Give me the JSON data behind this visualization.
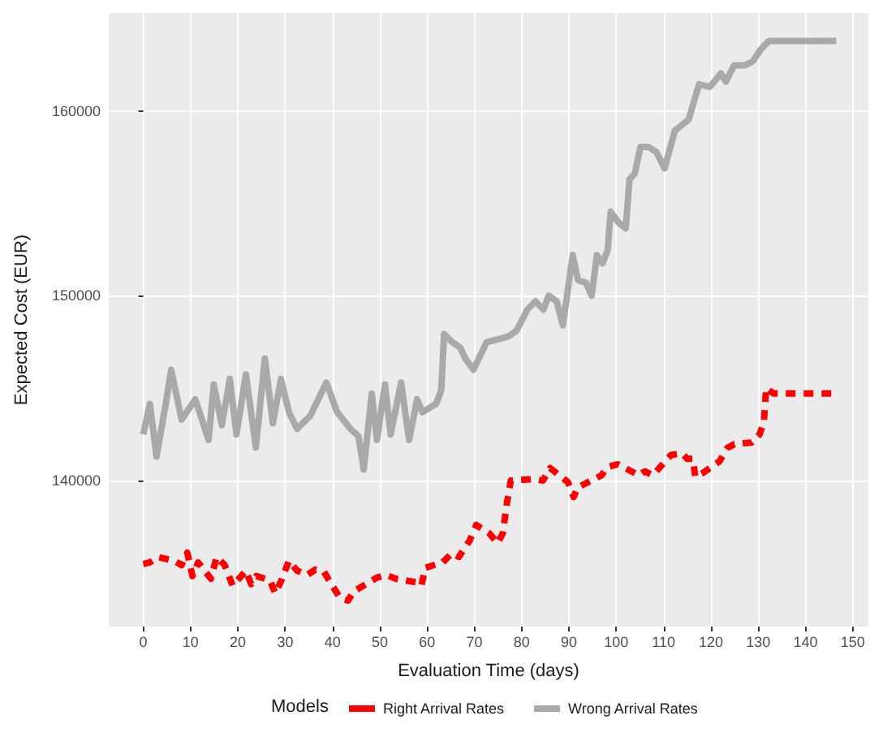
{
  "chart_data": {
    "type": "line",
    "xlabel": "Evaluation Time (days)",
    "ylabel": "Expected Cost (EUR)",
    "legend_title": "Models",
    "legend": "bottom",
    "grid": true,
    "xlim": [
      -7.3,
      153.3
    ],
    "xticks": [
      0,
      10,
      20,
      30,
      40,
      50,
      60,
      70,
      80,
      90,
      100,
      110,
      120,
      130,
      140,
      150
    ],
    "ylim": [
      132100,
      165300
    ],
    "yticks": [
      140000,
      150000,
      160000
    ],
    "series": [
      {
        "name": "Right Arrival Rates",
        "color": "#ff0000",
        "line_style": "dashed",
        "x": [
          0,
          1.4,
          3.1,
          6.5,
          8.1,
          9.3,
          10.4,
          11.6,
          14.3,
          15.5,
          17.2,
          18.9,
          21.7,
          22.8,
          23.9,
          26.8,
          27.9,
          29.1,
          30.8,
          32.5,
          34.7,
          36.4,
          38.2,
          39.3,
          41.6,
          43.3,
          44.5,
          49.4,
          51.3,
          53.4,
          57.9,
          58.8,
          59.6,
          63.3,
          65.3,
          66.7,
          69.0,
          70.4,
          71.4,
          73.2,
          74.9,
          76.0,
          76.9,
          77.7,
          82.8,
          84.5,
          86.0,
          89.8,
          91.0,
          91.8,
          96.9,
          98.1,
          100.3,
          104.8,
          106.0,
          107.7,
          111.6,
          113.9,
          115.0,
          116.2,
          116.7,
          118.1,
          121.8,
          123.5,
          125.0,
          128.6,
          130.3,
          131.2,
          131.7,
          133.2,
          134.9,
          146.2
        ],
        "values": [
          135490,
          135575,
          135870,
          135660,
          135430,
          136100,
          134840,
          135575,
          134690,
          135870,
          135430,
          134310,
          135130,
          134400,
          134840,
          134600,
          133900,
          134540,
          135660,
          135130,
          134900,
          135190,
          135070,
          134600,
          133650,
          133510,
          134010,
          134750,
          134900,
          134690,
          134490,
          134310,
          135280,
          135575,
          136080,
          135870,
          136750,
          137600,
          137430,
          137140,
          136610,
          137140,
          138820,
          140000,
          140090,
          140000,
          140680,
          139910,
          139115,
          139620,
          140290,
          140735,
          140885,
          140290,
          140500,
          140290,
          141390,
          141480,
          141180,
          141180,
          140200,
          140380,
          141035,
          141770,
          141975,
          142060,
          142500,
          143160,
          145020,
          144720,
          144720,
          144720
        ]
      },
      {
        "name": "Wrong Arrival Rates",
        "color": "#a9a9a9",
        "line_style": "solid",
        "x": [
          0,
          1.4,
          2.8,
          4.75,
          5.9,
          8.1,
          11.0,
          13.8,
          14.9,
          16.6,
          18.3,
          19.7,
          21.7,
          23.8,
          25.7,
          27.4,
          29.1,
          30.8,
          32.5,
          35.3,
          38.7,
          41.0,
          43.8,
          45.5,
          46.6,
          48.3,
          49.4,
          51.1,
          52.3,
          54.5,
          56.2,
          57.9,
          59.0,
          61.9,
          63.0,
          63.6,
          65.3,
          67.0,
          68.1,
          69.8,
          72.6,
          74.9,
          77.2,
          78.9,
          81.2,
          82.9,
          84.6,
          85.7,
          87.4,
          88.7,
          90.8,
          91.9,
          93.6,
          94.8,
          95.9,
          97.1,
          98.2,
          98.8,
          100.5,
          102.0,
          102.8,
          103.9,
          105.1,
          106.8,
          108.5,
          110.2,
          112.4,
          115.3,
          117.5,
          119.8,
          122.1,
          123.2,
          124.9,
          127.2,
          128.9,
          130.6,
          132.3,
          146.5
        ],
        "values": [
          142500,
          144150,
          141300,
          144150,
          146000,
          143300,
          144400,
          142200,
          145200,
          143000,
          145500,
          142500,
          145750,
          141800,
          146600,
          143100,
          145500,
          143700,
          142800,
          143500,
          145300,
          143700,
          142800,
          142400,
          140600,
          144700,
          142200,
          145200,
          142500,
          145300,
          142200,
          144400,
          143700,
          144150,
          144900,
          147930,
          147490,
          147200,
          146600,
          146000,
          147490,
          147640,
          147800,
          148100,
          149250,
          149700,
          149250,
          150000,
          149700,
          148400,
          152200,
          150850,
          150700,
          150000,
          152200,
          151750,
          152500,
          154550,
          153950,
          153650,
          156300,
          156600,
          158050,
          158050,
          157770,
          156890,
          158940,
          159530,
          161440,
          161300,
          162030,
          161590,
          162470,
          162470,
          162700,
          163350,
          163790,
          163790
        ]
      }
    ]
  }
}
